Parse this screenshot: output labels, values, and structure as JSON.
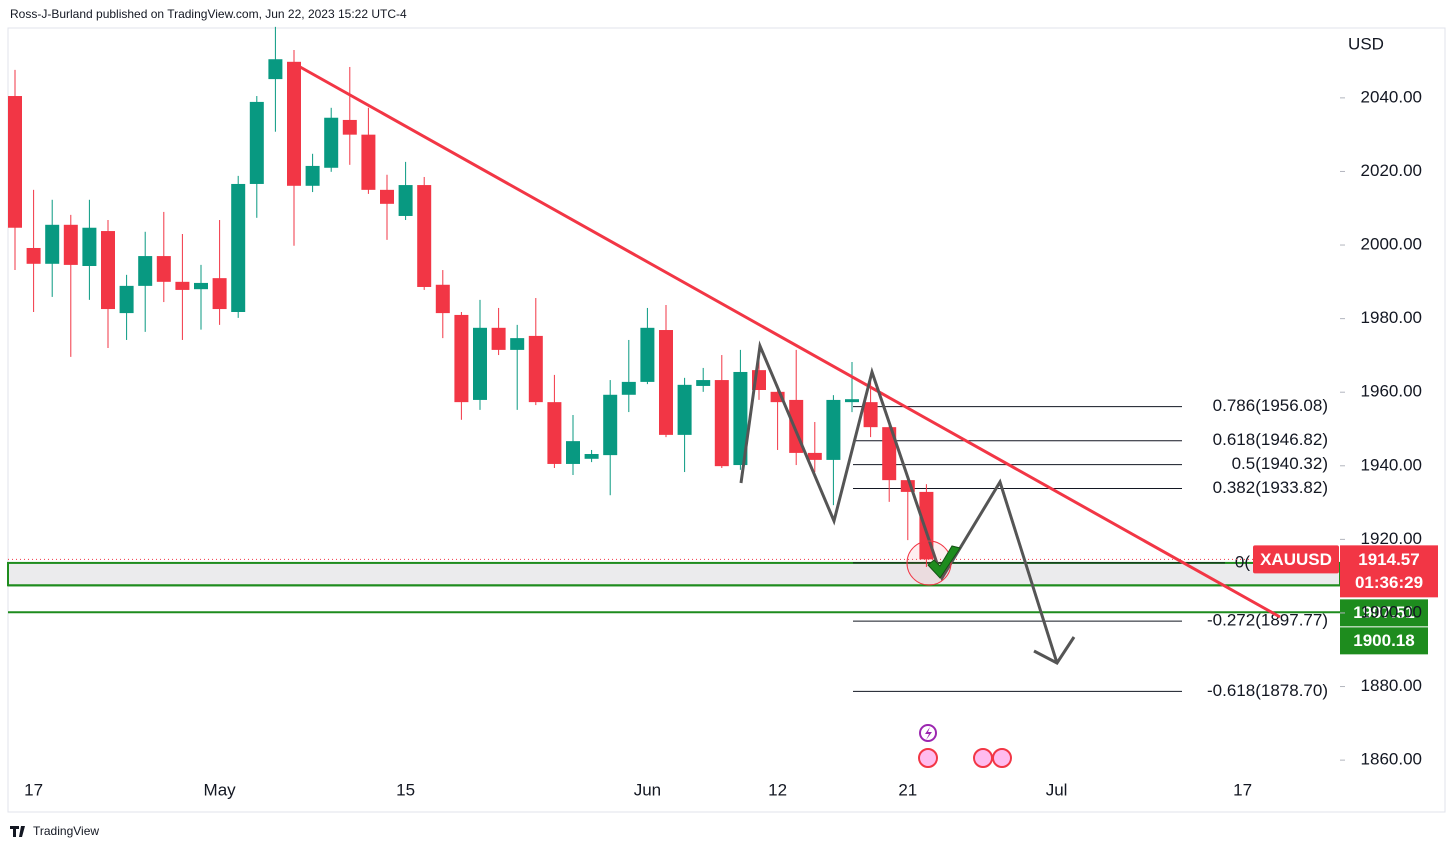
{
  "chart_data": {
    "type": "candlestick",
    "source": "Ross-J-Burland published on TradingView.com, Jun 22, 2023 15:22 UTC-4",
    "brand": "TradingView",
    "y_axis_label": "USD",
    "categories": [
      null,
      "17",
      null,
      null,
      null,
      null,
      null,
      null,
      null,
      null,
      null,
      "May",
      null,
      null,
      null,
      null,
      null,
      null,
      null,
      null,
      null,
      "15",
      null,
      null,
      null,
      null,
      null,
      null,
      null,
      null,
      null,
      null,
      null,
      null,
      "Jun",
      null,
      null,
      null,
      null,
      null,
      null,
      "12",
      null,
      null,
      null,
      null,
      null,
      null,
      "21",
      null,
      null,
      null,
      null,
      null,
      null,
      null,
      "Jul",
      null,
      null,
      null,
      null,
      null,
      null,
      null,
      null,
      null,
      "17",
      null,
      null,
      null,
      null,
      null
    ],
    "open": [
      2040.5,
      1999.2,
      1994.9,
      2005.5,
      1994.3,
      2003.8,
      1981.5,
      1988.9,
      1997,
      1990,
      1988,
      1991,
      1981.8,
      2016.6,
      2045.1,
      2049.8,
      2016.1,
      2021,
      2034,
      2030,
      2015,
      2007.9,
      2016.3,
      1989.2,
      1981,
      1957.9,
      1977.5,
      1971.5,
      1975.3,
      1957.3,
      1940.5,
      1941.9,
      1942.9,
      1959.3,
      1962.8,
      1976.9,
      1948.4,
      1961.7,
      1963.3,
      1940.2,
      1966,
      1960.1,
      1957.9,
      1943.5,
      1941.6,
      1957.3,
      1957.3,
      1950.5,
      1936.1,
      1932.9,
      null,
      null,
      null,
      null,
      null,
      null,
      null,
      null,
      null,
      null,
      null,
      null,
      null,
      null,
      null,
      null,
      null,
      null,
      null,
      null,
      null,
      null
    ],
    "high": [
      2047.6,
      2015,
      2012.3,
      2008.2,
      2012.3,
      2006.8,
      1991.9,
      2003.6,
      2009,
      2003,
      1994.6,
      2006.8,
      2018.8,
      2040.5,
      2059.3,
      2053,
      2024.8,
      2037.3,
      2048.4,
      2037.3,
      2019.1,
      2022.6,
      2018.5,
      1993.2,
      1981.8,
      1985.1,
      1982.9,
      1978.3,
      1985.6,
      1964.7,
      1953.8,
      1944.3,
      1963.3,
      1974.2,
      1982.9,
      1983.7,
      1963.9,
      1966.6,
      1970.1,
      1971.5,
      1972.8,
      1962,
      1971.5,
      1951.9,
      1959.2,
      1968.2,
      1963.3,
      1952.5,
      1936.7,
      1935,
      null,
      null,
      null,
      null,
      null,
      null,
      null,
      null,
      null,
      null,
      null,
      null,
      null,
      null,
      null,
      null,
      null,
      null,
      null,
      null,
      null,
      null
    ],
    "low": [
      1993.2,
      1981.8,
      1985.9,
      1969.6,
      1985.1,
      1972,
      1974.2,
      1976.4,
      1984.5,
      1974.2,
      1977,
      1978.3,
      1980.2,
      2007.4,
      2030.8,
      1999.8,
      2014.4,
      2019.9,
      2021.8,
      2013.9,
      2001.4,
      2006.8,
      1987.8,
      1974.7,
      1952.5,
      1955.2,
      1970.1,
      1955.2,
      1956.5,
      1939.4,
      1937.5,
      1941,
      1932,
      1954.6,
      1962.2,
      1947.8,
      1938.3,
      1960.1,
      1939.4,
      1938.9,
      1957.9,
      1944.3,
      1940.2,
      1938.3,
      1929.3,
      1954.6,
      1947.8,
      1930.2,
      1919.8,
      1912.5,
      null,
      null,
      null,
      null,
      null,
      null,
      null,
      null,
      null,
      null,
      null,
      null,
      null,
      null,
      null,
      null,
      null,
      null,
      null,
      null,
      null,
      null
    ],
    "close": [
      2004.7,
      1994.9,
      2005.5,
      1994.6,
      2004.7,
      1982.6,
      1988.9,
      1997,
      1990,
      1987.8,
      1989.7,
      1982.6,
      2016.6,
      2038.9,
      2050.5,
      2016.1,
      2021.5,
      2034.6,
      2030,
      2015,
      2011.2,
      2016.3,
      1988.6,
      1981.5,
      1957.3,
      1977.5,
      1971.5,
      1974.7,
      1957.3,
      1940.5,
      1946.7,
      1943.2,
      1959.3,
      1962.8,
      1977.5,
      1948.4,
      1962,
      1963.3,
      1939.9,
      1965.5,
      1960.6,
      1957.3,
      1943.5,
      1941.6,
      1957.9,
      1958.1,
      1950.5,
      1936.1,
      1932.9,
      1914.57,
      null,
      null,
      null,
      null,
      null,
      null,
      null,
      null,
      null,
      null,
      null,
      null,
      null,
      null,
      null,
      null,
      null,
      null,
      null,
      null,
      null,
      null
    ],
    "colors": {
      "up": "#089981",
      "down": "#f23645",
      "trendline": "#f23645",
      "support": "#1e8c1e"
    },
    "ylim": [
      1845.9,
      2066.6
    ],
    "yticks": [
      {
        "value": 1860,
        "label": "1860.00"
      },
      {
        "value": 1880,
        "label": "1880.00"
      },
      {
        "value": 1900,
        "label": "1900.00"
      },
      {
        "value": 1920,
        "label": "1920.00"
      },
      {
        "value": 1940,
        "label": "1940.00"
      },
      {
        "value": 1960,
        "label": "1960.00"
      },
      {
        "value": 1980,
        "label": "1980.00"
      },
      {
        "value": 2000,
        "label": "2000.00"
      },
      {
        "value": 2020,
        "label": "2020.00"
      },
      {
        "value": 2040,
        "label": "2040.00"
      }
    ],
    "grid": false,
    "fib_levels": [
      {
        "label": "0.786(1956.08)",
        "value": 1956.08
      },
      {
        "label": "0.618(1946.82)",
        "value": 1946.82
      },
      {
        "label": "0.5(1940.32)",
        "value": 1940.32
      },
      {
        "label": "0.382(1933.82)",
        "value": 1933.82
      },
      {
        "label": "0(",
        "value": 1913.6
      },
      {
        "label": "-0.272(1897.77)",
        "value": 1897.77
      },
      {
        "label": "-0.618(1878.70)",
        "value": 1878.7
      }
    ],
    "zone": [
      1907.51,
      1913.6
    ],
    "symbol": "XAUUSD",
    "last_price": 1914.57,
    "countdown": "01:36:29",
    "price_lines": [
      1907.51,
      1900.18
    ]
  }
}
